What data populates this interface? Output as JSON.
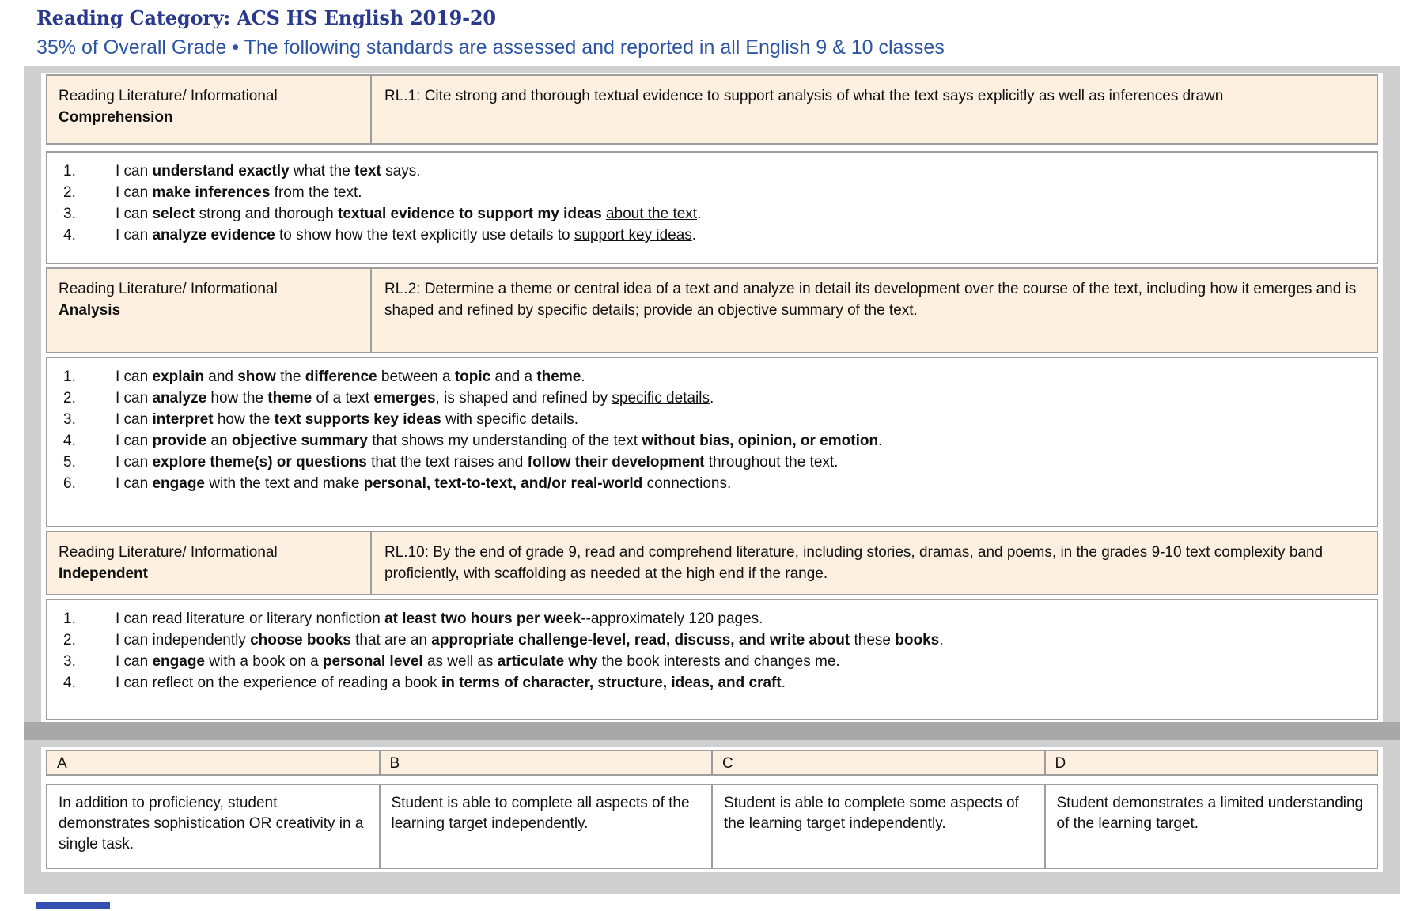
{
  "header": {
    "title": "Reading Category: ACS HS English 2019-20",
    "subtitle": "35% of Overall Grade • The following standards are assessed and reported in all English 9 & 10 classes"
  },
  "standards": [
    {
      "category": {
        "line1": "Reading Literature/ Informational",
        "line2": "Comprehension"
      },
      "standard_text": "RL.1: Cite strong and thorough textual evidence to support analysis of what the text says explicitly as well as inferences drawn",
      "targets": [
        [
          [
            "I can ",
            ""
          ],
          [
            "understand exactly",
            "b"
          ],
          [
            " what the ",
            ""
          ],
          [
            "text",
            "b"
          ],
          [
            " says.",
            ""
          ]
        ],
        [
          [
            "I can ",
            ""
          ],
          [
            "make inferences",
            "b"
          ],
          [
            " from the text.",
            ""
          ]
        ],
        [
          [
            "I can ",
            ""
          ],
          [
            "select",
            "b"
          ],
          [
            " strong and thorough ",
            ""
          ],
          [
            "textual evidence to support my ideas",
            "b"
          ],
          [
            " ",
            ""
          ],
          [
            "about the text",
            "u"
          ],
          [
            ".",
            ""
          ]
        ],
        [
          [
            "I can ",
            ""
          ],
          [
            "analyze evidence",
            "b"
          ],
          [
            " to show how the text explicitly use details to ",
            ""
          ],
          [
            "support key ideas",
            "u"
          ],
          [
            ".",
            ""
          ]
        ]
      ]
    },
    {
      "category": {
        "line1": "Reading Literature/ Informational",
        "line2": "Analysis"
      },
      "standard_text": "RL.2: Determine a theme or central idea of a text and analyze in detail its development over the course of the text, including how it emerges and is shaped and refined by specific details; provide an objective summary of the text.",
      "targets": [
        [
          [
            "I can ",
            ""
          ],
          [
            "explain",
            "b"
          ],
          [
            " and ",
            ""
          ],
          [
            "show",
            "b"
          ],
          [
            " the ",
            ""
          ],
          [
            "difference",
            "b"
          ],
          [
            " between a ",
            ""
          ],
          [
            "topic",
            "b"
          ],
          [
            " and a ",
            ""
          ],
          [
            "theme",
            "b"
          ],
          [
            ".",
            ""
          ]
        ],
        [
          [
            "I can ",
            ""
          ],
          [
            "analyze",
            "b"
          ],
          [
            " how the ",
            ""
          ],
          [
            "theme",
            "b"
          ],
          [
            " of a text ",
            ""
          ],
          [
            "emerges",
            "b"
          ],
          [
            ", is shaped and refined by ",
            ""
          ],
          [
            "specific details",
            "u"
          ],
          [
            ".",
            ""
          ]
        ],
        [
          [
            "I can ",
            ""
          ],
          [
            "interpret",
            "b"
          ],
          [
            " how the ",
            ""
          ],
          [
            "text supports key ideas",
            "b"
          ],
          [
            " with ",
            ""
          ],
          [
            "specific details",
            "u"
          ],
          [
            ".",
            ""
          ]
        ],
        [
          [
            "I can ",
            ""
          ],
          [
            "provide",
            "b"
          ],
          [
            " an ",
            ""
          ],
          [
            "objective summary",
            "b"
          ],
          [
            " that shows my understanding of the text ",
            ""
          ],
          [
            "without bias, opinion, or emotion",
            "b"
          ],
          [
            ".",
            ""
          ]
        ],
        [
          [
            "I can ",
            ""
          ],
          [
            "explore theme(s) or questions",
            "b"
          ],
          [
            " that the text raises and ",
            ""
          ],
          [
            "follow their development",
            "b"
          ],
          [
            " throughout the text.",
            ""
          ]
        ],
        [
          [
            "I can ",
            ""
          ],
          [
            "engage",
            "b"
          ],
          [
            " with the text and make ",
            ""
          ],
          [
            "personal, text-to-text, and/or real-world",
            "b"
          ],
          [
            " connections.",
            ""
          ]
        ]
      ]
    },
    {
      "category": {
        "line1": "Reading Literature/ Informational",
        "line2": "Independent"
      },
      "standard_text": "RL.10: By the end of grade 9, read and comprehend literature, including stories, dramas, and poems, in the grades 9-10 text complexity band proficiently, with scaffolding as needed at the high end if the range.",
      "targets": [
        [
          [
            "I can read literature or literary nonfiction ",
            ""
          ],
          [
            "at least two hours per week",
            "b"
          ],
          [
            "--approximately 120 pages.",
            ""
          ]
        ],
        [
          [
            "I can independently ",
            ""
          ],
          [
            "choose books",
            "b"
          ],
          [
            " that are an ",
            ""
          ],
          [
            "appropriate challenge-level, read, discuss, and write about",
            "b"
          ],
          [
            " these ",
            ""
          ],
          [
            "books",
            "b"
          ],
          [
            ".",
            ""
          ]
        ],
        [
          [
            "I can ",
            ""
          ],
          [
            "engage",
            "b"
          ],
          [
            " with a book on a ",
            ""
          ],
          [
            "personal level",
            "b"
          ],
          [
            " as well as ",
            ""
          ],
          [
            "articulate why",
            "b"
          ],
          [
            " the book interests and changes me.",
            ""
          ]
        ],
        [
          [
            "I can reflect on the experience of reading a book ",
            ""
          ],
          [
            "in terms of character, structure, ideas, and craft",
            "b"
          ],
          [
            ".",
            ""
          ]
        ]
      ]
    }
  ],
  "rubric": {
    "columns": [
      {
        "label": "A",
        "description": "In addition to proficiency, student demonstrates sophistication OR creativity in a single task."
      },
      {
        "label": "B",
        "description": "Student is able to complete all aspects of the learning target independently."
      },
      {
        "label": "C",
        "description": "Student is able to complete some aspects of the learning target independently."
      },
      {
        "label": "D",
        "description": "Student demonstrates a limited understanding of the learning target."
      }
    ]
  },
  "colors": {
    "title_blue": "#29398c",
    "subtitle_blue": "#2d55a4",
    "cell_peach": "#fdf0e0",
    "canvas_gray": "#cfcfcf",
    "divider_gray": "#a8a8a8",
    "border_gray": "#9e9e9e",
    "next_section_blue": "#3450b0"
  }
}
